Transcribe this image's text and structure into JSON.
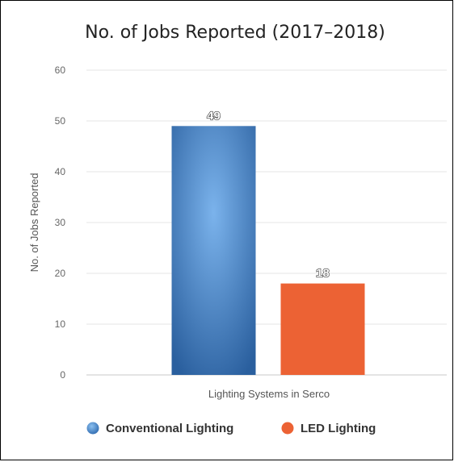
{
  "chart_data": {
    "type": "bar",
    "title": "No. of Jobs Reported (2017–2018)",
    "ylabel": "No. of Jobs Reported",
    "categories": [
      "Lighting Systems in Serco"
    ],
    "ylim": [
      0,
      60
    ],
    "yticks": [
      0,
      10,
      20,
      30,
      40,
      50,
      60
    ],
    "grid": true,
    "legend_position": "bottom",
    "series": [
      {
        "name": "Conventional Lighting",
        "values": [
          49
        ],
        "color": "#3a7cc4"
      },
      {
        "name": "LED Lighting",
        "values": [
          18
        ],
        "color": "#ec6234"
      }
    ]
  }
}
